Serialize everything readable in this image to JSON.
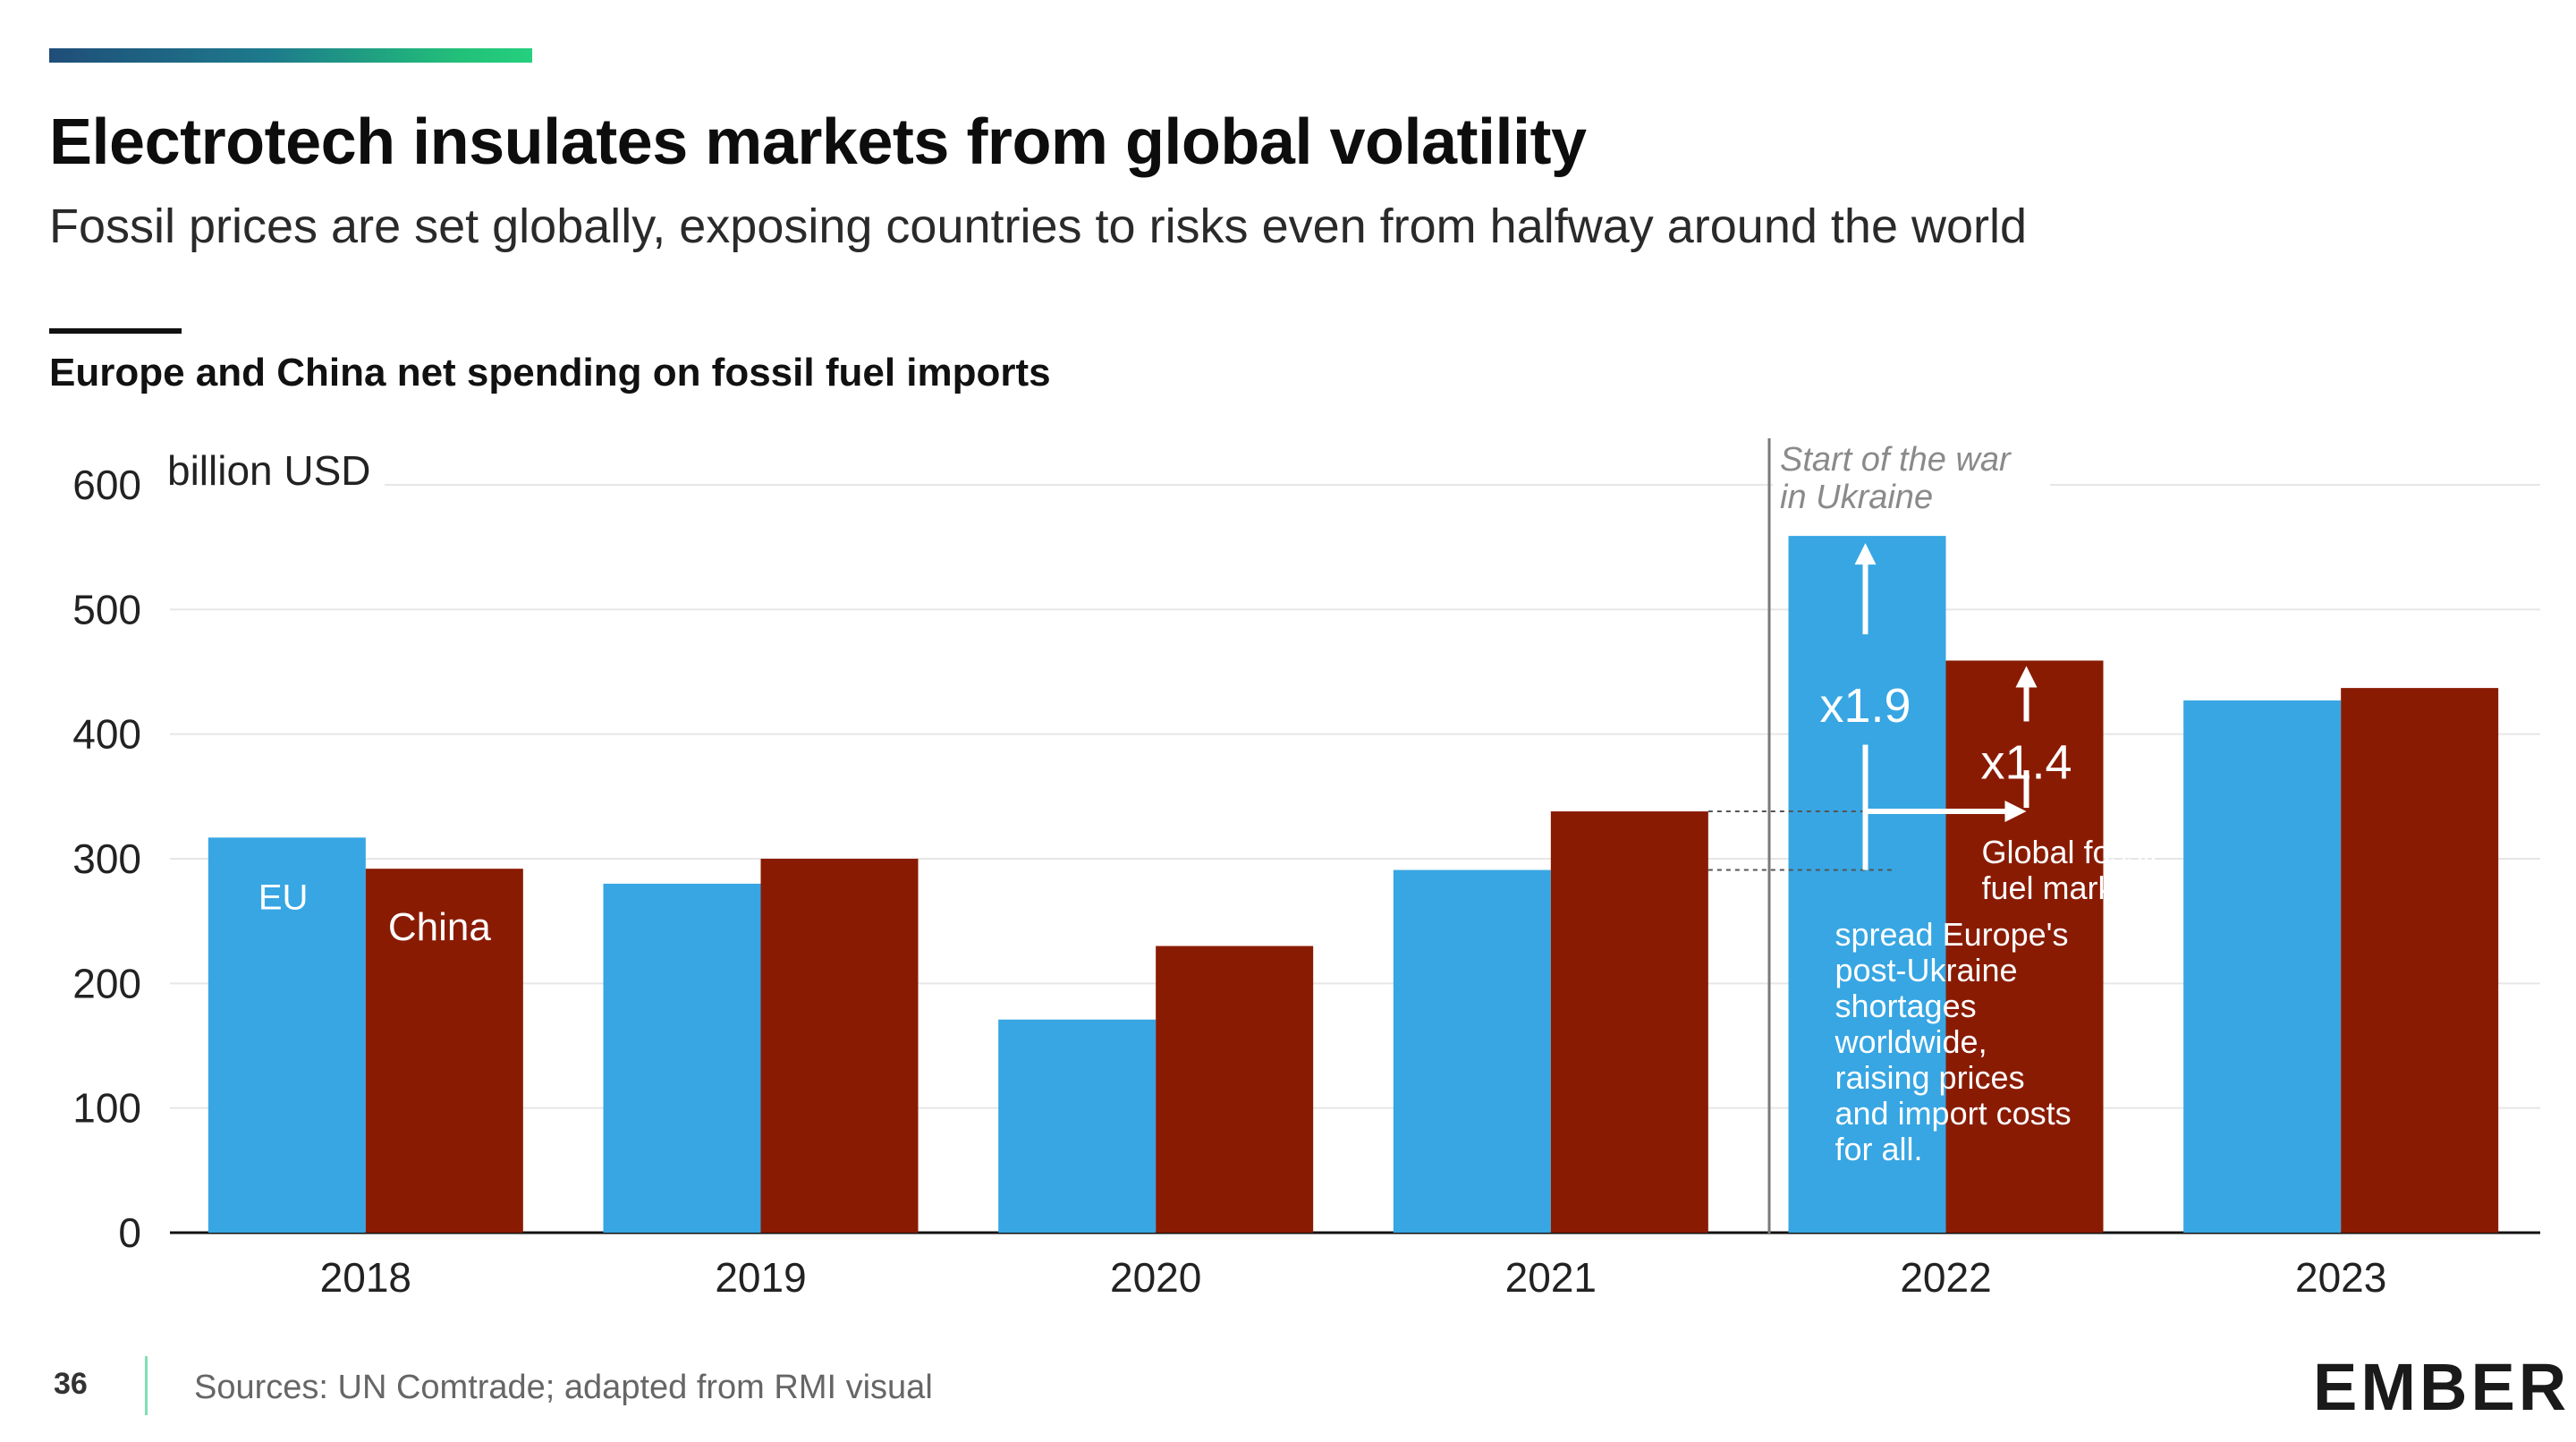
{
  "header": {
    "title": "Electrotech insulates markets from global volatility",
    "subtitle": "Fossil prices are set globally, exposing countries to risks even from halfway around the world"
  },
  "footer": {
    "page_number": "36",
    "source": "Sources: UN Comtrade; adapted from RMI visual",
    "logo_text": "EMBER"
  },
  "colors": {
    "eu": "#37a6e3",
    "china": "#8a1b03",
    "accent_gradient_start": "#1f4e79",
    "accent_gradient_end": "#25d07e"
  },
  "chart_data": {
    "type": "bar",
    "title": "Europe and China net spending on fossil fuel imports",
    "ylabel": "billion USD",
    "ylim": [
      0,
      600
    ],
    "yticks": [
      0,
      100,
      200,
      300,
      400,
      500,
      600
    ],
    "grid": true,
    "categories": [
      "2018",
      "2019",
      "2020",
      "2021",
      "2022",
      "2023"
    ],
    "series": [
      {
        "name": "EU",
        "color": "#37a6e3",
        "values": [
          317,
          280,
          171,
          291,
          559,
          427
        ]
      },
      {
        "name": "China",
        "color": "#8a1b03",
        "values": [
          292,
          300,
          230,
          338,
          459,
          437
        ]
      }
    ],
    "annotations": {
      "war_label_line1": "Start of the war",
      "war_label_line2": "in Ukraine",
      "eu_multiplier": "x1.9",
      "china_multiplier": "x1.4",
      "note_lines": [
        "Global fossil",
        "fuel markets",
        "spread Europe's",
        "post-Ukraine",
        "shortages",
        "worldwide,",
        "raising prices",
        "and import costs",
        "for all."
      ]
    }
  }
}
